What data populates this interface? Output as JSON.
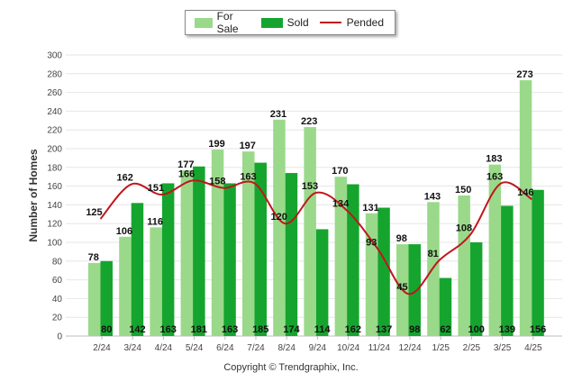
{
  "chart_data": {
    "type": "bar",
    "ylabel": "Number of Homes",
    "ylim": [
      0,
      300
    ],
    "yticks": [
      0,
      20,
      40,
      60,
      80,
      100,
      120,
      140,
      160,
      180,
      200,
      220,
      240,
      260,
      280,
      300
    ],
    "categories": [
      "2/24",
      "3/24",
      "4/24",
      "5/24",
      "6/24",
      "7/24",
      "8/24",
      "9/24",
      "10/24",
      "11/24",
      "12/24",
      "1/25",
      "2/25",
      "3/25",
      "4/25"
    ],
    "series": [
      {
        "name": "For Sale",
        "kind": "bar",
        "color": "#9ad98a",
        "values": [
          78,
          106,
          116,
          177,
          199,
          197,
          231,
          223,
          170,
          131,
          98,
          143,
          150,
          183,
          273
        ]
      },
      {
        "name": "Sold",
        "kind": "bar",
        "color": "#15a52e",
        "values": [
          80,
          142,
          163,
          181,
          163,
          185,
          174,
          114,
          162,
          137,
          98,
          62,
          100,
          139,
          156
        ]
      },
      {
        "name": "Pended",
        "kind": "line",
        "color": "#c0161c",
        "values": [
          125,
          162,
          151,
          166,
          158,
          163,
          120,
          153,
          134,
          93,
          45,
          81,
          108,
          163,
          146
        ]
      }
    ],
    "legend_position": "top-center",
    "grid": true
  },
  "footer": {
    "copyright": "Copyright © Trendgraphix, Inc."
  }
}
